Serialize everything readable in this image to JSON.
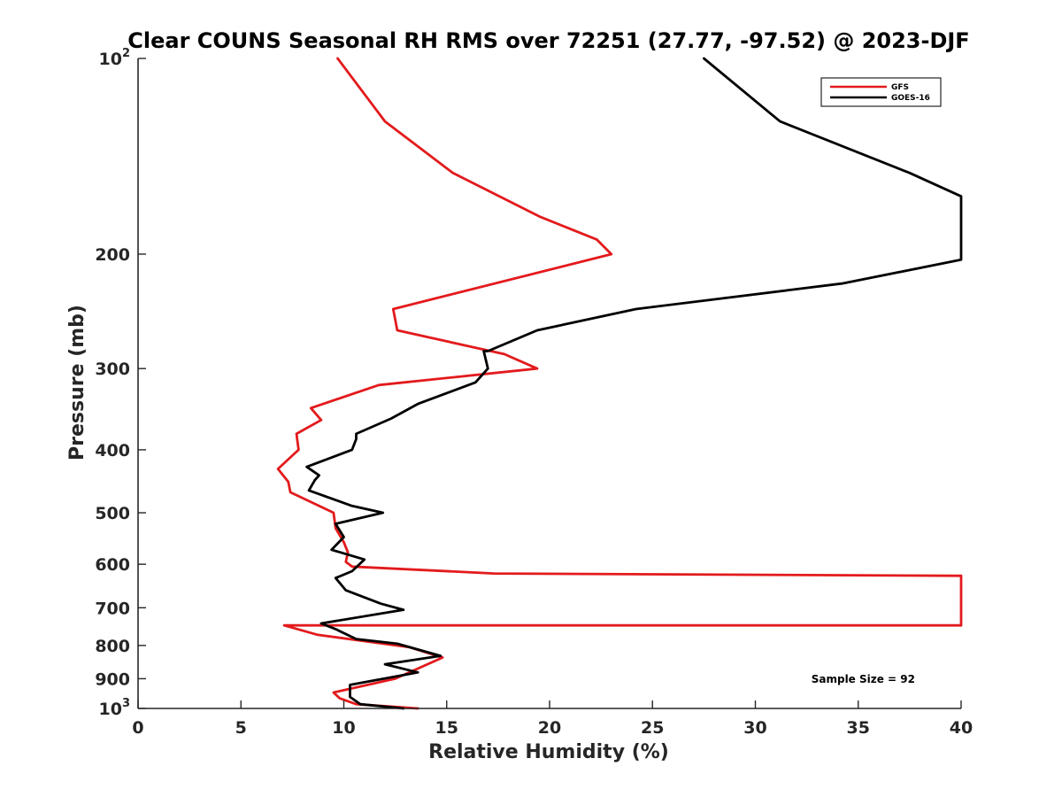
{
  "chart_data": {
    "type": "line",
    "title": "Clear COUNS Seasonal RH RMS over 72251 (27.77, -97.52) @ 2023-DJF",
    "xlabel": "Relative Humidity (%)",
    "ylabel": "Pressure (mb)",
    "xlim": [
      0,
      40
    ],
    "ylim": [
      100,
      1000
    ],
    "y_scale": "log",
    "y_reversed": true,
    "x_ticks": [
      0,
      5,
      10,
      15,
      20,
      25,
      30,
      35,
      40
    ],
    "x_tick_labels": [
      "0",
      "5",
      "10",
      "15",
      "20",
      "25",
      "30",
      "35",
      "40"
    ],
    "y_ticks": [
      100,
      200,
      300,
      400,
      500,
      600,
      700,
      800,
      900,
      1000
    ],
    "y_tick_labels": [
      {
        "base": "10",
        "sup": "2"
      },
      {
        "base": "200",
        "sup": ""
      },
      {
        "base": "300",
        "sup": ""
      },
      {
        "base": "400",
        "sup": ""
      },
      {
        "base": "500",
        "sup": ""
      },
      {
        "base": "600",
        "sup": ""
      },
      {
        "base": "700",
        "sup": ""
      },
      {
        "base": "800",
        "sup": ""
      },
      {
        "base": "900",
        "sup": ""
      },
      {
        "base": "10",
        "sup": "3"
      }
    ],
    "legend_position": "top-right",
    "annotation": "Sample Size = 92",
    "series": [
      {
        "name": "GFS",
        "color": "#e31a1c",
        "points": [
          [
            9.7,
            100
          ],
          [
            12.0,
            125
          ],
          [
            15.3,
            150
          ],
          [
            19.5,
            175
          ],
          [
            22.3,
            190
          ],
          [
            23.0,
            200
          ],
          [
            12.4,
            243
          ],
          [
            12.6,
            262
          ],
          [
            17.8,
            285
          ],
          [
            19.4,
            300
          ],
          [
            11.7,
            318
          ],
          [
            8.4,
            345
          ],
          [
            8.9,
            360
          ],
          [
            7.7,
            378
          ],
          [
            7.8,
            400
          ],
          [
            6.8,
            428
          ],
          [
            7.3,
            448
          ],
          [
            7.4,
            465
          ],
          [
            9.5,
            500
          ],
          [
            9.6,
            528
          ],
          [
            10.0,
            555
          ],
          [
            10.2,
            575
          ],
          [
            10.1,
            595
          ],
          [
            10.4,
            605
          ],
          [
            17.3,
            620
          ],
          [
            40,
            625
          ],
          [
            40,
            745
          ],
          [
            7.1,
            745
          ],
          [
            8.7,
            770
          ],
          [
            13.2,
            805
          ],
          [
            14.8,
            835
          ],
          [
            12.5,
            900
          ],
          [
            9.5,
            945
          ],
          [
            9.8,
            965
          ],
          [
            10.6,
            985
          ],
          [
            13.6,
            1000
          ]
        ]
      },
      {
        "name": "GOES-16",
        "color": "#000000",
        "points": [
          [
            27.5,
            100
          ],
          [
            31.2,
            125
          ],
          [
            37.5,
            150
          ],
          [
            40,
            163
          ],
          [
            40,
            204
          ],
          [
            34.2,
            222
          ],
          [
            24.2,
            243
          ],
          [
            19.4,
            262
          ],
          [
            17.0,
            282
          ],
          [
            16.8,
            282
          ],
          [
            17.0,
            300
          ],
          [
            16.4,
            315
          ],
          [
            13.6,
            340
          ],
          [
            12.3,
            358
          ],
          [
            10.6,
            378
          ],
          [
            10.6,
            385
          ],
          [
            10.4,
            400
          ],
          [
            8.2,
            425
          ],
          [
            8.8,
            438
          ],
          [
            8.6,
            445
          ],
          [
            8.3,
            462
          ],
          [
            10.4,
            488
          ],
          [
            11.9,
            500
          ],
          [
            9.6,
            520
          ],
          [
            10.0,
            545
          ],
          [
            9.4,
            570
          ],
          [
            11.0,
            590
          ],
          [
            10.4,
            615
          ],
          [
            9.6,
            630
          ],
          [
            10.1,
            658
          ],
          [
            11.8,
            690
          ],
          [
            12.9,
            705
          ],
          [
            8.9,
            740
          ],
          [
            9.6,
            755
          ],
          [
            10.6,
            782
          ],
          [
            12.6,
            795
          ],
          [
            14.7,
            830
          ],
          [
            12.0,
            855
          ],
          [
            13.6,
            880
          ],
          [
            10.3,
            920
          ],
          [
            10.3,
            960
          ],
          [
            10.8,
            985
          ],
          [
            12.9,
            1000
          ]
        ]
      }
    ]
  }
}
